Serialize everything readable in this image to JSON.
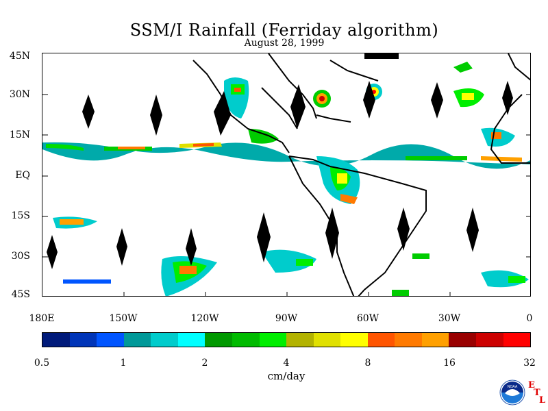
{
  "title": "SSM/I Rainfall (Ferriday algorithm)",
  "subtitle": "August 28, 1999",
  "y_ticks": [
    "45N",
    "30N",
    "15N",
    "EQ",
    "15S",
    "30S",
    "45S"
  ],
  "x_ticks": [
    "180E",
    "150W",
    "120W",
    "90W",
    "60W",
    "30W",
    "0"
  ],
  "colorbar": {
    "colors": [
      "#001a7a",
      "#0035b8",
      "#0055ff",
      "#009999",
      "#00cccc",
      "#00ffff",
      "#009900",
      "#00bb00",
      "#00ee00",
      "#b3b300",
      "#e0e000",
      "#ffff00",
      "#ff5500",
      "#ff7a00",
      "#ffa000",
      "#990000",
      "#cc0000",
      "#ff0000"
    ],
    "labels": [
      "0.5",
      "1",
      "2",
      "4",
      "8",
      "16",
      "32"
    ],
    "units": "cm/day"
  },
  "logo": {
    "agency": "NOAA",
    "letters": [
      "E",
      "T",
      "L"
    ],
    "icon": "noaa-logo-icon"
  }
}
